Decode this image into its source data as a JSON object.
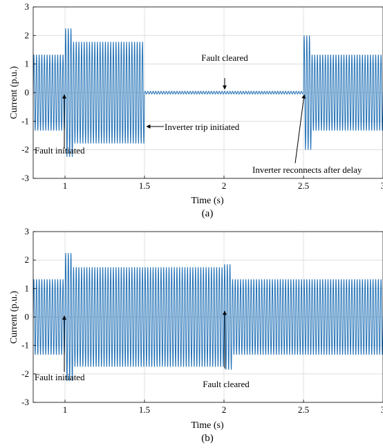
{
  "chart_data": [
    {
      "type": "line",
      "panel_label": "(a)",
      "xlabel": "Time (s)",
      "ylabel": "Current (p.u.)",
      "xlim": [
        0.8,
        3.0
      ],
      "ylim": [
        -3,
        3
      ],
      "x_ticks": [
        1,
        1.5,
        2,
        2.5,
        3
      ],
      "x_tick_labels": [
        "1",
        "1.5",
        "2",
        "2.5",
        "3"
      ],
      "y_ticks": [
        -3,
        -2,
        -1,
        0,
        1,
        2,
        3
      ],
      "y_tick_labels": [
        "-3",
        "-2",
        "-1",
        "0",
        "1",
        "2",
        "3"
      ],
      "grid": true,
      "line_color": "#1f6fb5",
      "series": [
        {
          "frequency_hz": 60,
          "segments": [
            {
              "t0": 0.8,
              "t1": 1.0,
              "amplitude": 1.33
            },
            {
              "t0": 1.0,
              "t1": 1.05,
              "amplitude": 2.25,
              "note": "fault transient"
            },
            {
              "t0": 1.05,
              "t1": 1.5,
              "amplitude": 1.78
            },
            {
              "t0": 1.5,
              "t1": 2.5,
              "amplitude": 0.05
            },
            {
              "t0": 2.5,
              "t1": 2.55,
              "amplitude": 2.0,
              "note": "reconnect transient"
            },
            {
              "t0": 2.55,
              "t1": 3.0,
              "amplitude": 1.33
            }
          ]
        }
      ],
      "annotations": [
        {
          "text": "Fault initiated",
          "x": 1.0,
          "y": 0.0
        },
        {
          "text": "Inverter trip initiated",
          "x": 1.5,
          "y": -1.8
        },
        {
          "text": "Fault cleared",
          "x": 2.0,
          "y": 0.05
        },
        {
          "text": "Inverter reconnects after delay",
          "x": 2.5,
          "y": 0.05
        }
      ]
    },
    {
      "type": "line",
      "panel_label": "(b)",
      "xlabel": "Time (s)",
      "ylabel": "Current (p.u.)",
      "xlim": [
        0.8,
        3.0
      ],
      "ylim": [
        -3,
        3
      ],
      "x_ticks": [
        1,
        1.5,
        2,
        2.5,
        3
      ],
      "x_tick_labels": [
        "1",
        "1.5",
        "2",
        "2.5",
        "3"
      ],
      "y_ticks": [
        -3,
        -2,
        -1,
        0,
        1,
        2,
        3
      ],
      "y_tick_labels": [
        "-3",
        "-2",
        "-1",
        "0",
        "1",
        "2",
        "3"
      ],
      "grid": true,
      "line_color": "#1f6fb5",
      "series": [
        {
          "frequency_hz": 60,
          "segments": [
            {
              "t0": 0.8,
              "t1": 1.0,
              "amplitude": 1.33
            },
            {
              "t0": 1.0,
              "t1": 1.05,
              "amplitude": 2.25,
              "note": "fault transient"
            },
            {
              "t0": 1.05,
              "t1": 2.0,
              "amplitude": 1.75
            },
            {
              "t0": 2.0,
              "t1": 2.05,
              "amplitude": 1.85,
              "note": "clearing transient"
            },
            {
              "t0": 2.05,
              "t1": 3.0,
              "amplitude": 1.33
            }
          ]
        }
      ],
      "annotations": [
        {
          "text": "Fault initiated",
          "x": 1.0,
          "y": 0.0
        },
        {
          "text": "Fault cleared",
          "x": 2.0,
          "y": 0.0
        }
      ]
    }
  ]
}
